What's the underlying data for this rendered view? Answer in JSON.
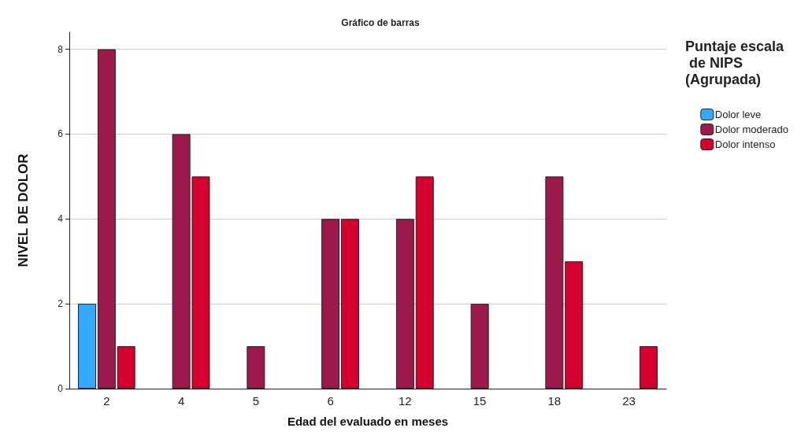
{
  "chart_data": {
    "type": "bar",
    "title": "Gráfico de barras",
    "xlabel": "Edad del evaluado en meses",
    "ylabel": "NIVEL DE DOLOR",
    "legend_title": "Puntaje escala de NIPS (Agrupada)",
    "categories": [
      "2",
      "4",
      "5",
      "6",
      "12",
      "15",
      "18",
      "23"
    ],
    "series": [
      {
        "name": "Dolor leve",
        "color": "#33aaff",
        "values": [
          2,
          null,
          null,
          null,
          null,
          null,
          null,
          null
        ]
      },
      {
        "name": "Dolor moderado",
        "color": "#9b1a4b",
        "values": [
          8,
          6,
          1,
          4,
          4,
          2,
          5,
          null
        ]
      },
      {
        "name": "Dolor intenso",
        "color": "#d6002f",
        "values": [
          1,
          5,
          null,
          4,
          5,
          null,
          3,
          1
        ]
      }
    ],
    "ylim": [
      0,
      8.4
    ],
    "yticks": [
      0,
      2,
      4,
      6,
      8
    ],
    "grid": "y",
    "legend": "top right"
  }
}
